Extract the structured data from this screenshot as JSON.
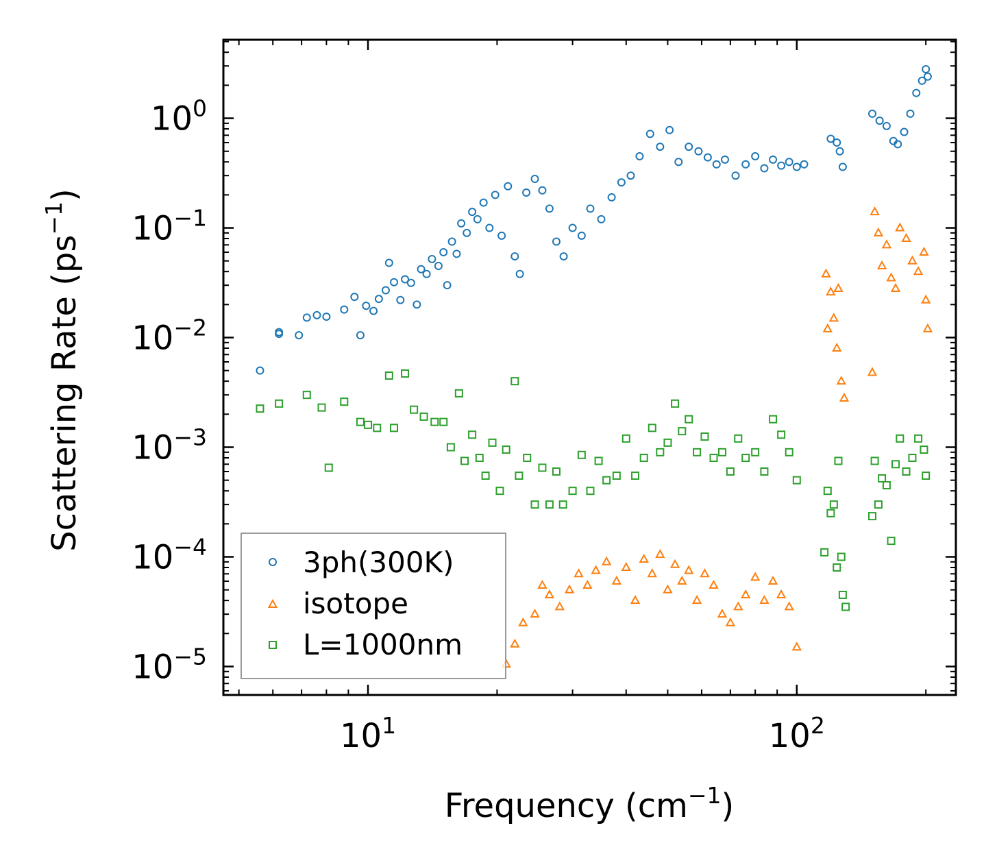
{
  "chart_data": {
    "type": "scatter",
    "xlabel": "Frequency (cm",
    "xlabel_sup": "−1",
    "xlabel_end": ")",
    "ylabel": "Scattering Rate (ps",
    "ylabel_sup": "−1",
    "ylabel_end": ")",
    "xscale": "log",
    "yscale": "log",
    "xlim": [
      4.6,
      235
    ],
    "ylim": [
      5.5e-06,
      5.2
    ],
    "x_ticks": [
      {
        "value": 10,
        "base": "10",
        "exp": "1"
      },
      {
        "value": 100,
        "base": "10",
        "exp": "2"
      }
    ],
    "y_ticks": [
      {
        "value": 1,
        "base": "10",
        "exp": "0"
      },
      {
        "value": 0.1,
        "base": "10",
        "exp": "−1"
      },
      {
        "value": 0.01,
        "base": "10",
        "exp": "−2"
      },
      {
        "value": 0.001,
        "base": "10",
        "exp": "−3"
      },
      {
        "value": 0.0001,
        "base": "10",
        "exp": "−4"
      },
      {
        "value": 1e-05,
        "base": "10",
        "exp": "−5"
      }
    ],
    "legend_position": "lower-left",
    "series": [
      {
        "name": "3ph(300K)",
        "marker": "circle",
        "color": "#1f77b4",
        "points": [
          [
            5.6,
            0.005
          ],
          [
            6.2,
            0.0112
          ],
          [
            6.2,
            0.0108
          ],
          [
            6.9,
            0.0105
          ],
          [
            7.2,
            0.0152
          ],
          [
            7.6,
            0.016
          ],
          [
            8.0,
            0.0155
          ],
          [
            8.8,
            0.018
          ],
          [
            9.3,
            0.0235
          ],
          [
            9.6,
            0.0105
          ],
          [
            9.9,
            0.0195
          ],
          [
            10.3,
            0.0175
          ],
          [
            10.6,
            0.0225
          ],
          [
            11.0,
            0.027
          ],
          [
            11.2,
            0.048
          ],
          [
            11.5,
            0.032
          ],
          [
            11.9,
            0.022
          ],
          [
            12.2,
            0.034
          ],
          [
            12.6,
            0.0315
          ],
          [
            13.0,
            0.02
          ],
          [
            13.3,
            0.042
          ],
          [
            13.7,
            0.038
          ],
          [
            14.1,
            0.052
          ],
          [
            14.6,
            0.045
          ],
          [
            15.0,
            0.06
          ],
          [
            15.3,
            0.03
          ],
          [
            15.7,
            0.075
          ],
          [
            16.1,
            0.058
          ],
          [
            16.5,
            0.11
          ],
          [
            17.0,
            0.09
          ],
          [
            17.5,
            0.14
          ],
          [
            18.0,
            0.12
          ],
          [
            18.6,
            0.17
          ],
          [
            19.2,
            0.1
          ],
          [
            19.8,
            0.2
          ],
          [
            20.5,
            0.085
          ],
          [
            21.2,
            0.24
          ],
          [
            22.0,
            0.055
          ],
          [
            22.6,
            0.038
          ],
          [
            23.4,
            0.21
          ],
          [
            24.5,
            0.28
          ],
          [
            25.5,
            0.22
          ],
          [
            26.5,
            0.15
          ],
          [
            27.5,
            0.075
          ],
          [
            28.6,
            0.055
          ],
          [
            30.0,
            0.1
          ],
          [
            31.5,
            0.085
          ],
          [
            33.0,
            0.15
          ],
          [
            35.0,
            0.12
          ],
          [
            37.0,
            0.19
          ],
          [
            39.0,
            0.26
          ],
          [
            41.0,
            0.3
          ],
          [
            43.0,
            0.45
          ],
          [
            45.5,
            0.72
          ],
          [
            48.0,
            0.55
          ],
          [
            50.5,
            0.78
          ],
          [
            53.0,
            0.4
          ],
          [
            56.0,
            0.55
          ],
          [
            59.0,
            0.5
          ],
          [
            62.0,
            0.44
          ],
          [
            65.0,
            0.38
          ],
          [
            68.0,
            0.42
          ],
          [
            72.0,
            0.3
          ],
          [
            76.0,
            0.38
          ],
          [
            80.0,
            0.45
          ],
          [
            84.0,
            0.35
          ],
          [
            88.0,
            0.42
          ],
          [
            92.0,
            0.37
          ],
          [
            96.0,
            0.4
          ],
          [
            100.0,
            0.36
          ],
          [
            104.0,
            0.38
          ],
          [
            120.0,
            0.65
          ],
          [
            124.0,
            0.6
          ],
          [
            126.0,
            0.5
          ],
          [
            128.0,
            0.36
          ],
          [
            150.0,
            1.1
          ],
          [
            156.0,
            0.95
          ],
          [
            162.0,
            0.85
          ],
          [
            168.0,
            0.62
          ],
          [
            172.0,
            0.58
          ],
          [
            178.0,
            0.75
          ],
          [
            184.0,
            1.1
          ],
          [
            190.0,
            1.7
          ],
          [
            196.0,
            2.2
          ],
          [
            200.0,
            2.8
          ],
          [
            202.0,
            2.4
          ]
        ]
      },
      {
        "name": "isotope",
        "marker": "triangle",
        "color": "#ff7f0e",
        "points": [
          [
            21.0,
            1.05e-05
          ],
          [
            22.0,
            1.6e-05
          ],
          [
            23.0,
            2.5e-05
          ],
          [
            24.5,
            3e-05
          ],
          [
            25.5,
            5.5e-05
          ],
          [
            26.5,
            4.5e-05
          ],
          [
            28.0,
            3.5e-05
          ],
          [
            29.5,
            5e-05
          ],
          [
            31.0,
            7e-05
          ],
          [
            32.5,
            5.5e-05
          ],
          [
            34.0,
            7.5e-05
          ],
          [
            36.0,
            9e-05
          ],
          [
            38.0,
            6e-05
          ],
          [
            40.0,
            8e-05
          ],
          [
            42.0,
            4e-05
          ],
          [
            44.0,
            9.5e-05
          ],
          [
            46.0,
            7e-05
          ],
          [
            48.0,
            0.000105
          ],
          [
            50.0,
            5e-05
          ],
          [
            52.0,
            8.5e-05
          ],
          [
            54.0,
            6e-05
          ],
          [
            56.0,
            7.5e-05
          ],
          [
            58.5,
            4e-05
          ],
          [
            61.0,
            7e-05
          ],
          [
            64.0,
            5.5e-05
          ],
          [
            67.0,
            3e-05
          ],
          [
            70.0,
            2.5e-05
          ],
          [
            73.0,
            3.5e-05
          ],
          [
            76.0,
            4.5e-05
          ],
          [
            80.0,
            6.5e-05
          ],
          [
            84.0,
            4e-05
          ],
          [
            88.0,
            6e-05
          ],
          [
            92.0,
            4.5e-05
          ],
          [
            96.0,
            3.5e-05
          ],
          [
            100.0,
            1.5e-05
          ],
          [
            117.0,
            0.038
          ],
          [
            118.0,
            0.012
          ],
          [
            120.0,
            0.026
          ],
          [
            122.0,
            0.015
          ],
          [
            124.0,
            0.008
          ],
          [
            125.0,
            0.028
          ],
          [
            127.0,
            0.004
          ],
          [
            129.0,
            0.0028
          ],
          [
            150.0,
            0.0048
          ],
          [
            152.0,
            0.14
          ],
          [
            155.0,
            0.09
          ],
          [
            158.0,
            0.045
          ],
          [
            162.0,
            0.07
          ],
          [
            166.0,
            0.035
          ],
          [
            170.0,
            0.028
          ],
          [
            174.0,
            0.1
          ],
          [
            180.0,
            0.08
          ],
          [
            186.0,
            0.05
          ],
          [
            192.0,
            0.04
          ],
          [
            198.0,
            0.06
          ],
          [
            200.0,
            0.022
          ],
          [
            202.0,
            0.012
          ]
        ]
      },
      {
        "name": "L=1000nm",
        "marker": "square",
        "color": "#2ca02c",
        "points": [
          [
            5.6,
            0.00225
          ],
          [
            6.2,
            0.0025
          ],
          [
            7.2,
            0.003
          ],
          [
            7.8,
            0.0023
          ],
          [
            8.1,
            0.00065
          ],
          [
            8.8,
            0.0026
          ],
          [
            9.6,
            0.0017
          ],
          [
            10.0,
            0.0016
          ],
          [
            10.5,
            0.0015
          ],
          [
            11.2,
            0.0045
          ],
          [
            11.5,
            0.0015
          ],
          [
            12.2,
            0.0047
          ],
          [
            12.8,
            0.0022
          ],
          [
            13.5,
            0.0019
          ],
          [
            14.3,
            0.0017
          ],
          [
            15.0,
            0.0017
          ],
          [
            15.6,
            0.001
          ],
          [
            16.3,
            0.0031
          ],
          [
            16.8,
            0.00075
          ],
          [
            17.5,
            0.0013
          ],
          [
            18.2,
            0.0008
          ],
          [
            18.8,
            0.00055
          ],
          [
            19.5,
            0.0011
          ],
          [
            20.3,
            0.0004
          ],
          [
            21.0,
            0.00095
          ],
          [
            22.0,
            0.004
          ],
          [
            22.5,
            0.00055
          ],
          [
            23.5,
            0.0008
          ],
          [
            24.5,
            0.0003
          ],
          [
            25.5,
            0.00065
          ],
          [
            26.5,
            0.0003
          ],
          [
            27.5,
            0.0006
          ],
          [
            28.5,
            0.0003
          ],
          [
            30.0,
            0.0004
          ],
          [
            31.5,
            0.00085
          ],
          [
            33.0,
            0.0004
          ],
          [
            34.5,
            0.00075
          ],
          [
            36.0,
            0.0005
          ],
          [
            38.0,
            0.00055
          ],
          [
            40.0,
            0.0012
          ],
          [
            42.0,
            0.00055
          ],
          [
            44.0,
            0.0008
          ],
          [
            46.0,
            0.0015
          ],
          [
            48.0,
            0.0009
          ],
          [
            50.0,
            0.0011
          ],
          [
            52.0,
            0.0025
          ],
          [
            54.0,
            0.0014
          ],
          [
            56.0,
            0.0018
          ],
          [
            58.5,
            0.0009
          ],
          [
            61.0,
            0.00125
          ],
          [
            64.0,
            0.0008
          ],
          [
            67.0,
            0.0009
          ],
          [
            70.0,
            0.0006
          ],
          [
            73.0,
            0.0012
          ],
          [
            76.0,
            0.0008
          ],
          [
            80.0,
            0.0009
          ],
          [
            84.0,
            0.0006
          ],
          [
            88.0,
            0.0018
          ],
          [
            92.0,
            0.0013
          ],
          [
            96.0,
            0.0009
          ],
          [
            100.0,
            0.0005
          ],
          [
            116.0,
            0.00011
          ],
          [
            118.0,
            0.0004
          ],
          [
            120.0,
            0.00025
          ],
          [
            122.0,
            0.0003
          ],
          [
            124.0,
            8e-05
          ],
          [
            125.0,
            0.00075
          ],
          [
            127.0,
            0.0001
          ],
          [
            128.0,
            4.5e-05
          ],
          [
            130.0,
            3.5e-05
          ],
          [
            150.0,
            0.000235
          ],
          [
            152.0,
            0.00075
          ],
          [
            155.0,
            0.0003
          ],
          [
            158.0,
            0.00052
          ],
          [
            162.0,
            0.00045
          ],
          [
            166.0,
            0.00014
          ],
          [
            170.0,
            0.0007
          ],
          [
            174.0,
            0.0012
          ],
          [
            180.0,
            0.0006
          ],
          [
            186.0,
            0.0008
          ],
          [
            192.0,
            0.0012
          ],
          [
            198.0,
            0.00095
          ],
          [
            200.0,
            0.00055
          ]
        ]
      }
    ]
  }
}
